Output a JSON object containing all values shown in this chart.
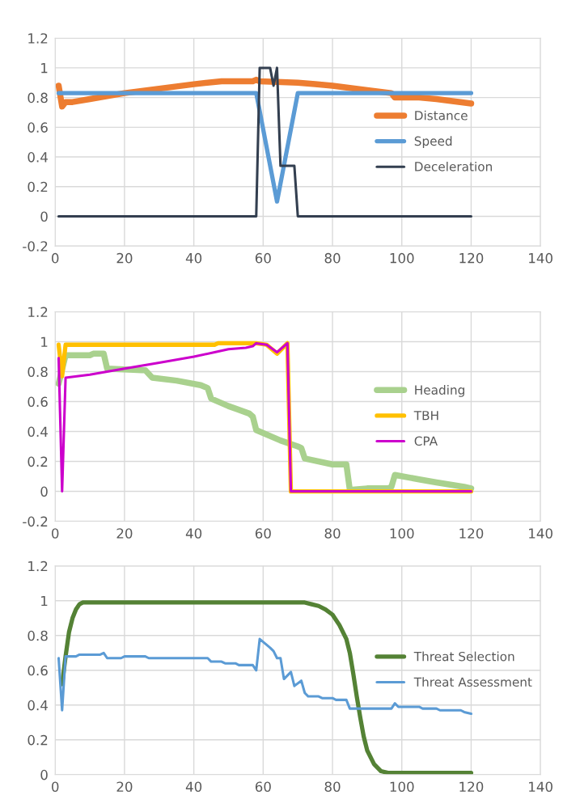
{
  "chart_data": [
    {
      "type": "line",
      "xlim": [
        0,
        140
      ],
      "ylim": [
        -0.2,
        1.2
      ],
      "xticks": [
        0,
        20,
        40,
        60,
        80,
        100,
        120,
        140
      ],
      "yticks": [
        -0.2,
        0,
        0.2,
        0.4,
        0.6,
        0.8,
        1,
        1.2
      ],
      "grid": true,
      "legend": "right",
      "series": [
        {
          "name": "Distance",
          "color": "#ed7d31",
          "x": [
            1,
            2,
            3,
            5,
            10,
            20,
            30,
            40,
            48,
            57,
            58,
            59,
            70,
            75,
            80,
            90,
            97,
            98,
            105,
            110,
            120
          ],
          "values": [
            0.88,
            0.74,
            0.77,
            0.77,
            0.79,
            0.83,
            0.86,
            0.89,
            0.91,
            0.91,
            0.92,
            0.91,
            0.9,
            0.89,
            0.88,
            0.85,
            0.83,
            0.8,
            0.8,
            0.79,
            0.76
          ]
        },
        {
          "name": "Speed",
          "color": "#5b9bd5",
          "x": [
            1,
            58,
            64,
            70,
            120
          ],
          "values": [
            0.83,
            0.83,
            0.1,
            0.83,
            0.83
          ]
        },
        {
          "name": "Deceleration",
          "color": "#333f50",
          "x": [
            1,
            58,
            59,
            62,
            63,
            64,
            65,
            69,
            70,
            120
          ],
          "values": [
            0,
            0,
            1,
            1,
            0.88,
            1,
            0.34,
            0.34,
            0,
            0
          ]
        }
      ]
    },
    {
      "type": "line",
      "xlim": [
        0,
        140
      ],
      "ylim": [
        -0.2,
        1.2
      ],
      "xticks": [
        0,
        20,
        40,
        60,
        80,
        100,
        120,
        140
      ],
      "yticks": [
        -0.2,
        0,
        0.2,
        0.4,
        0.6,
        0.8,
        1,
        1.2
      ],
      "grid": true,
      "legend": "right",
      "series": [
        {
          "name": "Heading",
          "color": "#a9d18e",
          "x": [
            1,
            3,
            10,
            11,
            14,
            15,
            25,
            26,
            28,
            35,
            42,
            44,
            45,
            50,
            56,
            57,
            58,
            65,
            70,
            71,
            72,
            80,
            84,
            85,
            90,
            96,
            97,
            98,
            105,
            110,
            118,
            120
          ],
          "values": [
            0.72,
            0.91,
            0.91,
            0.92,
            0.92,
            0.82,
            0.81,
            0.81,
            0.76,
            0.74,
            0.71,
            0.69,
            0.62,
            0.57,
            0.52,
            0.5,
            0.41,
            0.34,
            0.3,
            0.29,
            0.22,
            0.18,
            0.18,
            0.01,
            0.02,
            0.02,
            0.03,
            0.11,
            0.08,
            0.06,
            0.03,
            0.02
          ]
        },
        {
          "name": "TBH",
          "color": "#ffc000",
          "x": [
            1,
            2,
            3,
            46,
            47,
            58,
            61,
            64,
            67,
            68,
            120
          ],
          "values": [
            0.98,
            0.77,
            0.98,
            0.98,
            0.99,
            0.99,
            0.98,
            0.92,
            0.99,
            0,
            0
          ]
        },
        {
          "name": "CPA",
          "color": "#cc00cc",
          "x": [
            1,
            2,
            3,
            10,
            20,
            30,
            40,
            46,
            50,
            55,
            57,
            58,
            61,
            64,
            67,
            68,
            120
          ],
          "values": [
            0.89,
            0,
            0.76,
            0.78,
            0.82,
            0.86,
            0.9,
            0.93,
            0.95,
            0.96,
            0.97,
            0.99,
            0.98,
            0.93,
            0.99,
            0,
            0
          ]
        }
      ]
    },
    {
      "type": "line",
      "xlim": [
        0,
        140
      ],
      "ylim": [
        0,
        1.2
      ],
      "xticks": [
        0,
        20,
        40,
        60,
        80,
        100,
        120,
        140
      ],
      "yticks": [
        0,
        0.2,
        0.4,
        0.6,
        0.8,
        1,
        1.2
      ],
      "grid": true,
      "legend": "right",
      "series": [
        {
          "name": "Threat Selection",
          "color": "#548235",
          "x": [
            2,
            3,
            4,
            5,
            6,
            7,
            8,
            72,
            74,
            76,
            78,
            80,
            82,
            84,
            85,
            86,
            87,
            88,
            89,
            90,
            92,
            94,
            96,
            120
          ],
          "values": [
            0.52,
            0.68,
            0.82,
            0.9,
            0.95,
            0.98,
            0.99,
            0.99,
            0.98,
            0.97,
            0.95,
            0.92,
            0.86,
            0.78,
            0.7,
            0.58,
            0.45,
            0.33,
            0.22,
            0.14,
            0.06,
            0.02,
            0.01,
            0.01
          ]
        },
        {
          "name": "Threat Assessment",
          "color": "#5b9bd5",
          "x": [
            1,
            2,
            3,
            6,
            7,
            13,
            14,
            15,
            19,
            20,
            26,
            27,
            44,
            45,
            48,
            49,
            52,
            53,
            57,
            58,
            59,
            62,
            63,
            64,
            65,
            66,
            68,
            69,
            71,
            72,
            73,
            76,
            77,
            80,
            81,
            84,
            85,
            97,
            98,
            99,
            105,
            106,
            110,
            111,
            117,
            118,
            120
          ],
          "values": [
            0.67,
            0.37,
            0.68,
            0.68,
            0.69,
            0.69,
            0.7,
            0.67,
            0.67,
            0.68,
            0.68,
            0.67,
            0.67,
            0.65,
            0.65,
            0.64,
            0.64,
            0.63,
            0.63,
            0.6,
            0.78,
            0.73,
            0.71,
            0.67,
            0.67,
            0.55,
            0.59,
            0.51,
            0.54,
            0.47,
            0.45,
            0.45,
            0.44,
            0.44,
            0.43,
            0.43,
            0.38,
            0.38,
            0.41,
            0.39,
            0.39,
            0.38,
            0.38,
            0.37,
            0.37,
            0.36,
            0.35
          ]
        }
      ]
    }
  ]
}
